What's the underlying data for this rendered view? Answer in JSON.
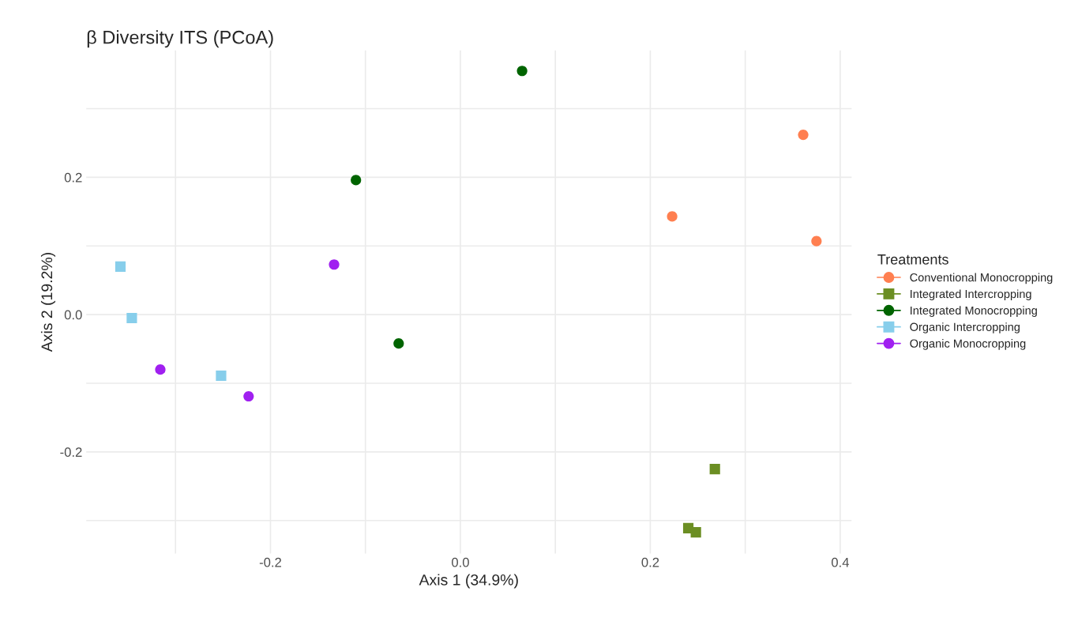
{
  "chart_data": {
    "type": "scatter",
    "title": "β Diversity ITS (PCoA)",
    "xlabel": "Axis 1 (34.9%)",
    "ylabel": "Axis 2 (19.2%)",
    "legend_title": "Treatments",
    "legend": "right",
    "grid": true,
    "xlim": [
      -0.394,
      0.412
    ],
    "ylim": [
      -0.348,
      0.385
    ],
    "xticks": [
      {
        "value": -0.3,
        "label": null
      },
      -0.2,
      {
        "value": -0.1,
        "label": null
      },
      {
        "value": 0.0,
        "label": "0.0"
      },
      {
        "value": 0.1,
        "label": null
      },
      0.2,
      {
        "value": 0.3,
        "label": null
      },
      0.4
    ],
    "yticks": [
      {
        "value": -0.3,
        "label": null
      },
      -0.2,
      {
        "value": -0.1,
        "label": null
      },
      {
        "value": 0.0,
        "label": "0.0"
      },
      {
        "value": 0.1,
        "label": null
      },
      0.2,
      {
        "value": 0.3,
        "label": null
      }
    ],
    "series": [
      {
        "name": "Conventional Monocropping",
        "color": "#ff7f50",
        "marker": "circle",
        "x": [
          0.361,
          0.223,
          0.375
        ],
        "values": [
          0.262,
          0.143,
          0.107
        ]
      },
      {
        "name": "Integrated Intercropping",
        "color": "#6b8e23",
        "marker": "square",
        "x": [
          0.268,
          0.24,
          0.248
        ],
        "values": [
          -0.225,
          -0.311,
          -0.317
        ]
      },
      {
        "name": "Integrated Monocropping",
        "color": "#006400",
        "marker": "circle",
        "x": [
          0.065,
          -0.11,
          -0.065
        ],
        "values": [
          0.355,
          0.196,
          -0.042
        ]
      },
      {
        "name": "Organic Intercropping",
        "color": "#87ceeb",
        "marker": "square",
        "x": [
          -0.358,
          -0.346,
          -0.252
        ],
        "values": [
          0.07,
          -0.005,
          -0.089
        ]
      },
      {
        "name": "Organic Monocropping",
        "color": "#a020f0",
        "marker": "circle",
        "x": [
          -0.316,
          -0.223,
          -0.133
        ],
        "values": [
          -0.08,
          -0.119,
          0.073
        ]
      }
    ]
  }
}
